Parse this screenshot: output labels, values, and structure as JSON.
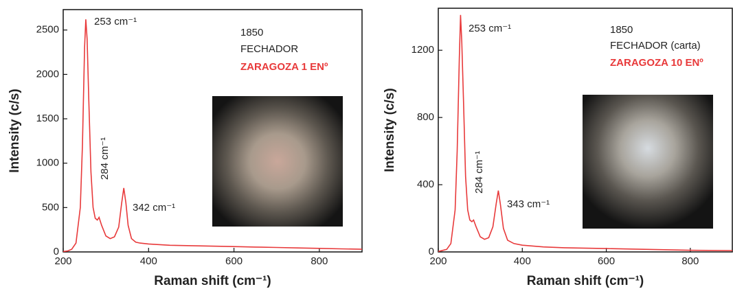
{
  "chart_data": [
    {
      "type": "line",
      "x": [
        200,
        210,
        220,
        230,
        240,
        245,
        250,
        253,
        256,
        260,
        265,
        270,
        275,
        280,
        284,
        290,
        300,
        310,
        320,
        330,
        337,
        342,
        347,
        352,
        360,
        370,
        380,
        400,
        450,
        500,
        550,
        600,
        650,
        700,
        750,
        800,
        850,
        900
      ],
      "values": [
        5,
        10,
        30,
        100,
        500,
        1200,
        2300,
        2620,
        2400,
        1700,
        900,
        500,
        380,
        360,
        390,
        300,
        180,
        150,
        170,
        280,
        550,
        720,
        550,
        300,
        150,
        110,
        100,
        90,
        75,
        70,
        65,
        60,
        55,
        50,
        45,
        40,
        35,
        30
      ],
      "color": "#e8393a",
      "xlim": [
        200,
        900
      ],
      "xticks": [
        200,
        400,
        600,
        800
      ],
      "ylim": [
        0,
        2730
      ],
      "yticks": [
        0,
        500,
        1000,
        1500,
        2000,
        2500
      ],
      "xlabel": "Raman shift  (cm⁻¹)",
      "ylabel": "Intensity (c/s)",
      "annotations": [
        "253 cm⁻¹",
        "284 cm⁻¹",
        "342 cm⁻¹"
      ],
      "notes": [
        "1850",
        "FECHADOR",
        "ZARAGOZA 1 ENº"
      ]
    },
    {
      "type": "line",
      "x": [
        200,
        220,
        230,
        240,
        245,
        250,
        253,
        256,
        260,
        265,
        270,
        275,
        280,
        284,
        290,
        300,
        310,
        320,
        330,
        338,
        343,
        348,
        355,
        365,
        380,
        400,
        450,
        500,
        600,
        700,
        800,
        900
      ],
      "values": [
        3,
        15,
        50,
        250,
        600,
        1150,
        1410,
        1250,
        900,
        450,
        250,
        190,
        180,
        190,
        150,
        90,
        75,
        85,
        150,
        290,
        365,
        280,
        140,
        70,
        50,
        40,
        30,
        25,
        20,
        15,
        10,
        8
      ],
      "color": "#e8393a",
      "xlim": [
        200,
        900
      ],
      "xticks": [
        200,
        400,
        600,
        800
      ],
      "ylim": [
        0,
        1450
      ],
      "yticks": [
        0,
        400,
        800,
        1200
      ],
      "xlabel": "Raman shift  (cm⁻¹)",
      "ylabel": "Intensity (c/s)",
      "annotations": [
        "253 cm⁻¹",
        "284 cm⁻¹",
        "343 cm⁻¹"
      ],
      "notes": [
        "1850",
        "FECHADOR (carta)",
        "ZARAGOZA 10 ENº"
      ]
    }
  ]
}
